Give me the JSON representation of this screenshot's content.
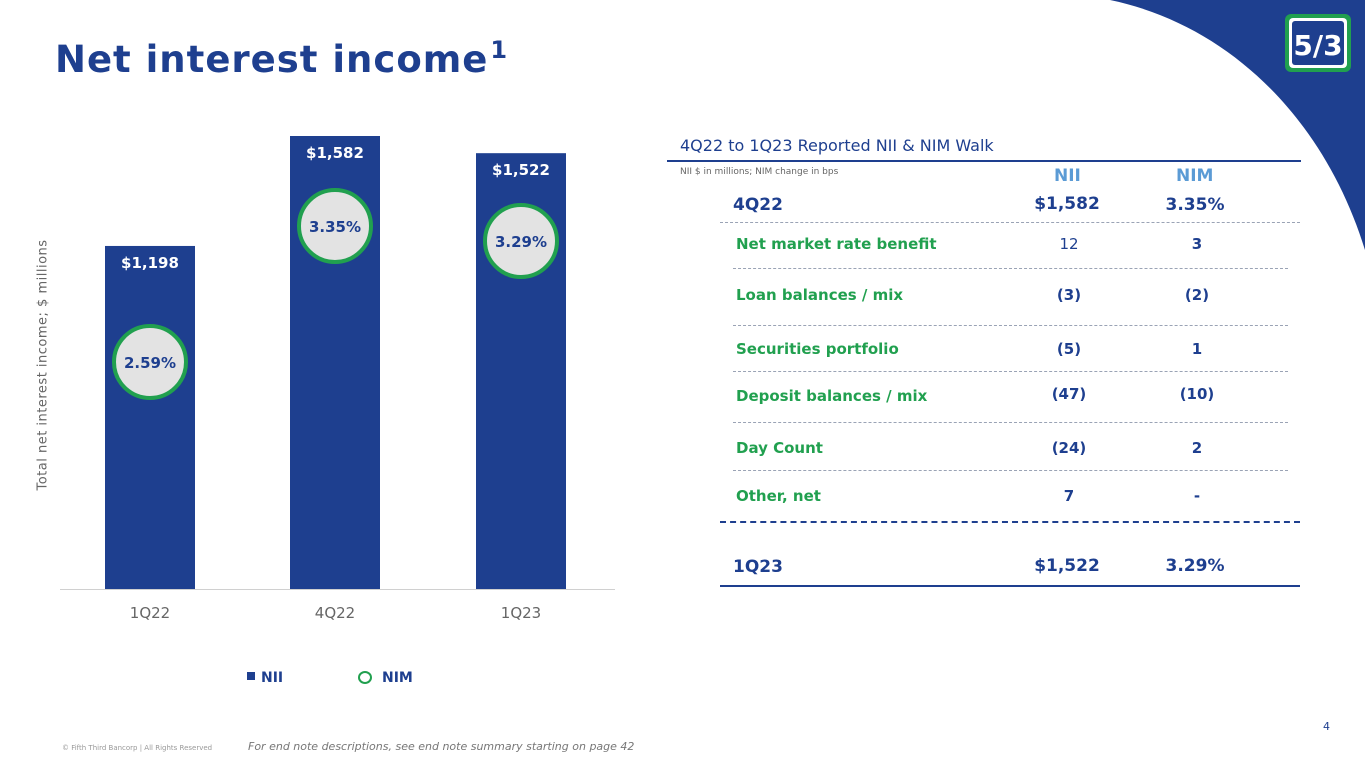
{
  "header": {
    "title": "Net interest income",
    "title_sup": "1"
  },
  "chart_data": {
    "type": "bar",
    "ylabel": "Total net interest income; $ millions",
    "categories": [
      "1Q22",
      "4Q22",
      "1Q23"
    ],
    "series": [
      {
        "name": "NII",
        "values": [
          1198,
          1582,
          1522
        ],
        "labels": [
          "$1,198",
          "$1,582",
          "$1,522"
        ]
      },
      {
        "name": "NIM",
        "values": [
          2.59,
          3.35,
          3.29
        ],
        "labels": [
          "2.59%",
          "3.35%",
          "3.29%"
        ]
      }
    ],
    "ylim": [
      0,
      1800
    ],
    "legend_position": "bottom",
    "colors": {
      "bar": "#1e3f8f",
      "nim_fill": "#e3e3e3",
      "nim_border": "#21a04f"
    }
  },
  "legend": {
    "nii": "NII",
    "nim": "NIM"
  },
  "walk": {
    "title": "4Q22 to 1Q23 Reported NII & NIM Walk",
    "note": "NII $ in millions; NIM change in bps",
    "col_nii": "NII",
    "col_nim": "NIM",
    "start": {
      "label": "4Q22",
      "nii": "$1,582",
      "nim": "3.35%"
    },
    "rows": [
      {
        "label": "Net market rate benefit",
        "nii": "12",
        "nim": "3"
      },
      {
        "label": "Loan balances / mix",
        "nii": "(3)",
        "nim": "(2)"
      },
      {
        "label": "Securities portfolio",
        "nii": "(5)",
        "nim": "1"
      },
      {
        "label": "Deposit balances / mix",
        "nii": "(47)",
        "nim": "(10)"
      },
      {
        "label": "Day Count",
        "nii": "(24)",
        "nim": "2"
      },
      {
        "label": "Other, net",
        "nii": "7",
        "nim": "-"
      }
    ],
    "end": {
      "label": "1Q23",
      "nii": "$1,522",
      "nim": "3.29%"
    }
  },
  "footer": {
    "copyright": "© Fifth Third Bancorp | All Rights Reserved",
    "note": "For end note descriptions, see end note summary starting on page 42",
    "page": "4"
  },
  "colors": {
    "brand_blue": "#1e3f8f",
    "brand_green": "#21a04f",
    "header_blue": "#5b9bd5"
  }
}
